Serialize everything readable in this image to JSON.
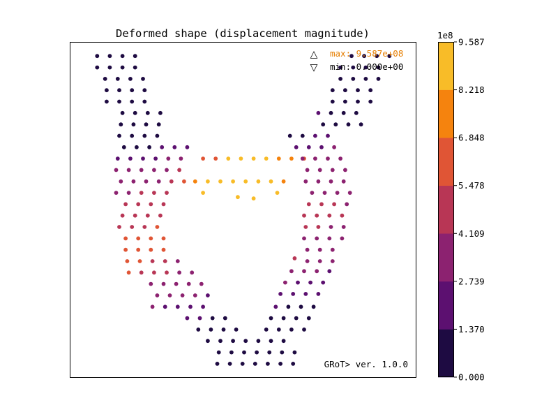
{
  "chart_data": {
    "type": "scatter",
    "title": "Deformed shape (displacement magnitude)",
    "xlabel": "",
    "ylabel": "",
    "grid": false,
    "annotations": {
      "max_marker": "△",
      "min_marker": "▽",
      "max_label": "max: 9.587e+08",
      "min_label": "min: 0.000e+00",
      "max_color": "#e67e00",
      "min_color": "#000000",
      "version": "GRoT> ver. 1.0.0"
    },
    "colorbar": {
      "multiplier": "1e8",
      "min": 0,
      "max": 9.587,
      "ticks": [
        "0.000",
        "1.370",
        "2.739",
        "4.109",
        "5.478",
        "6.848",
        "8.218",
        "9.587"
      ],
      "colors": [
        "#1e0b42",
        "#5c1070",
        "#8c2270",
        "#b83655",
        "#e05535",
        "#f5830e",
        "#f8bc28"
      ]
    },
    "points": [
      [
        0.5,
        -0.6,
        0
      ],
      [
        1.3,
        -0.6,
        0
      ],
      [
        2.1,
        -0.6,
        0
      ],
      [
        2.9,
        -0.6,
        0
      ],
      [
        0.5,
        -1.4,
        0
      ],
      [
        1.3,
        -1.4,
        0
      ],
      [
        2.1,
        -1.4,
        0
      ],
      [
        2.9,
        -1.4,
        0
      ],
      [
        1.0,
        -2.2,
        0
      ],
      [
        1.8,
        -2.2,
        0
      ],
      [
        2.6,
        -2.2,
        0
      ],
      [
        3.4,
        -2.2,
        0
      ],
      [
        1.1,
        -3.0,
        0
      ],
      [
        1.9,
        -3.0,
        0
      ],
      [
        2.7,
        -3.0,
        0
      ],
      [
        3.5,
        -3.0,
        0
      ],
      [
        1.1,
        -3.8,
        0
      ],
      [
        1.9,
        -3.8,
        0
      ],
      [
        2.7,
        -3.8,
        0
      ],
      [
        3.5,
        -3.8,
        0
      ],
      [
        2.1,
        -4.6,
        0
      ],
      [
        2.9,
        -4.6,
        0
      ],
      [
        3.7,
        -4.6,
        0
      ],
      [
        4.5,
        -4.6,
        0
      ],
      [
        2.0,
        -5.4,
        0
      ],
      [
        2.8,
        -5.4,
        0
      ],
      [
        3.6,
        -5.4,
        0
      ],
      [
        4.4,
        -5.4,
        0
      ],
      [
        1.9,
        -6.2,
        0
      ],
      [
        2.7,
        -6.2,
        0
      ],
      [
        3.5,
        -6.2,
        0
      ],
      [
        4.3,
        -6.2,
        1.0
      ],
      [
        2.2,
        -7.0,
        1.0
      ],
      [
        3.0,
        -7.0,
        1.0
      ],
      [
        3.8,
        -7.0,
        1.0
      ],
      [
        4.6,
        -7.0,
        1.8
      ],
      [
        5.4,
        -7.0,
        1.8
      ],
      [
        6.2,
        -7.0,
        2.1
      ],
      [
        1.8,
        -7.8,
        1.6
      ],
      [
        2.6,
        -7.8,
        1.8
      ],
      [
        3.4,
        -7.8,
        2.2
      ],
      [
        4.2,
        -7.8,
        2.5
      ],
      [
        5.0,
        -7.8,
        3.6
      ],
      [
        5.8,
        -7.8,
        4.0
      ],
      [
        1.7,
        -8.6,
        3.0
      ],
      [
        2.5,
        -8.6,
        3.1
      ],
      [
        3.3,
        -8.6,
        3.3
      ],
      [
        4.1,
        -8.6,
        3.4
      ],
      [
        4.9,
        -8.6,
        3.6
      ],
      [
        5.7,
        -8.6,
        4.8
      ],
      [
        2.0,
        -9.4,
        3.2
      ],
      [
        2.8,
        -9.4,
        3.4
      ],
      [
        3.6,
        -9.4,
        3.6
      ],
      [
        4.4,
        -9.4,
        4.0
      ],
      [
        5.2,
        -9.4,
        5.0
      ],
      [
        6.0,
        -9.4,
        6.5
      ],
      [
        1.7,
        -10.2,
        3.9
      ],
      [
        2.5,
        -10.2,
        4.0
      ],
      [
        3.3,
        -10.2,
        4.2
      ],
      [
        4.1,
        -10.2,
        4.3
      ],
      [
        4.9,
        -10.2,
        4.5
      ],
      [
        2.3,
        -11.0,
        4.4
      ],
      [
        3.1,
        -11.0,
        4.6
      ],
      [
        3.9,
        -11.0,
        4.7
      ],
      [
        4.7,
        -11.0,
        4.9
      ],
      [
        2.1,
        -11.8,
        4.8
      ],
      [
        2.9,
        -11.8,
        5.0
      ],
      [
        3.7,
        -11.8,
        5.2
      ],
      [
        4.5,
        -11.8,
        5.4
      ],
      [
        1.9,
        -12.6,
        5.0
      ],
      [
        2.7,
        -12.6,
        5.2
      ],
      [
        3.5,
        -12.6,
        5.4
      ],
      [
        4.3,
        -12.6,
        5.6
      ],
      [
        2.3,
        -13.4,
        5.8
      ],
      [
        3.1,
        -13.4,
        5.9
      ],
      [
        3.9,
        -13.4,
        6.0
      ],
      [
        4.7,
        -13.4,
        6.2
      ],
      [
        2.3,
        -14.2,
        6.3
      ],
      [
        3.1,
        -14.2,
        6.3
      ],
      [
        3.9,
        -14.2,
        6.3
      ],
      [
        4.7,
        -14.2,
        6.4
      ],
      [
        2.4,
        -15.0,
        6.0
      ],
      [
        3.2,
        -15.0,
        5.9
      ],
      [
        4.0,
        -15.0,
        5.4
      ],
      [
        4.8,
        -15.0,
        5.2
      ],
      [
        5.6,
        -15.0,
        4.0
      ],
      [
        2.5,
        -15.8,
        5.6
      ],
      [
        3.3,
        -15.8,
        5.1
      ],
      [
        4.1,
        -15.8,
        4.8
      ],
      [
        4.9,
        -15.8,
        4.3
      ],
      [
        5.7,
        -15.8,
        3.9
      ],
      [
        6.5,
        -15.8,
        3.6
      ],
      [
        3.9,
        -16.6,
        4.0
      ],
      [
        4.7,
        -16.6,
        3.8
      ],
      [
        5.5,
        -16.6,
        3.5
      ],
      [
        6.3,
        -16.6,
        3.3
      ],
      [
        7.1,
        -16.6,
        3.0
      ],
      [
        4.3,
        -17.4,
        3.4
      ],
      [
        5.1,
        -17.4,
        3.2
      ],
      [
        5.9,
        -17.4,
        3.0
      ],
      [
        6.7,
        -17.4,
        2.8
      ],
      [
        7.5,
        -17.4,
        2.5
      ],
      [
        4.0,
        -18.2,
        2.9
      ],
      [
        4.8,
        -18.2,
        2.7
      ],
      [
        5.6,
        -18.2,
        2.5
      ],
      [
        6.4,
        -18.2,
        2.3
      ],
      [
        7.2,
        -18.2,
        1.6
      ],
      [
        6.2,
        -19.0,
        1.6
      ],
      [
        7.0,
        -19.0,
        1.4
      ],
      [
        7.8,
        -19.0,
        1.0
      ],
      [
        8.6,
        -19.0,
        0.8
      ],
      [
        6.9,
        -19.8,
        0.9
      ],
      [
        7.7,
        -19.8,
        0.7
      ],
      [
        8.5,
        -19.8,
        0.5
      ],
      [
        9.3,
        -19.8,
        0.5
      ],
      [
        7.5,
        -20.6,
        0.3
      ],
      [
        8.3,
        -20.6,
        0.2
      ],
      [
        9.1,
        -20.6,
        0.2
      ],
      [
        9.9,
        -20.6,
        0.2
      ],
      [
        10.7,
        -20.6,
        0.2
      ],
      [
        11.5,
        -20.6,
        0.2
      ],
      [
        12.3,
        -20.6,
        0.2
      ],
      [
        8.2,
        -21.4,
        0
      ],
      [
        9.0,
        -21.4,
        0
      ],
      [
        9.8,
        -21.4,
        0
      ],
      [
        10.6,
        -21.4,
        0
      ],
      [
        11.4,
        -21.4,
        0
      ],
      [
        12.2,
        -21.4,
        0
      ],
      [
        13.0,
        -21.4,
        0
      ],
      [
        8.1,
        -22.2,
        0
      ],
      [
        8.9,
        -22.2,
        0
      ],
      [
        9.7,
        -22.2,
        0
      ],
      [
        10.5,
        -22.2,
        0
      ],
      [
        11.3,
        -22.2,
        0
      ],
      [
        12.1,
        -22.2,
        0
      ],
      [
        12.9,
        -22.2,
        0
      ],
      [
        7.2,
        -7.8,
        5.5
      ],
      [
        8.0,
        -7.8,
        6.6
      ],
      [
        8.8,
        -7.8,
        8.5
      ],
      [
        9.6,
        -7.8,
        8.8
      ],
      [
        10.4,
        -7.8,
        8.9
      ],
      [
        11.2,
        -7.8,
        8.8
      ],
      [
        12.0,
        -7.8,
        8.2
      ],
      [
        12.8,
        -7.8,
        7.0
      ],
      [
        13.6,
        -7.8,
        6.0
      ],
      [
        6.7,
        -9.4,
        6.9
      ],
      [
        7.5,
        -9.4,
        8.4
      ],
      [
        8.3,
        -9.4,
        8.6
      ],
      [
        9.1,
        -9.4,
        8.8
      ],
      [
        9.9,
        -9.4,
        8.7
      ],
      [
        10.7,
        -9.4,
        8.6
      ],
      [
        11.5,
        -9.4,
        8.5
      ],
      [
        12.3,
        -9.4,
        7.0
      ],
      [
        7.2,
        -10.2,
        8.7
      ],
      [
        9.4,
        -10.5,
        8.7
      ],
      [
        10.4,
        -10.6,
        8.6
      ],
      [
        11.9,
        -10.2,
        8.5
      ],
      [
        12.7,
        -6.2,
        1.0
      ],
      [
        13.5,
        -6.2,
        1.2
      ],
      [
        14.3,
        -6.2,
        1.5
      ],
      [
        15.1,
        -6.2,
        2.3
      ],
      [
        13.1,
        -7.0,
        2.0
      ],
      [
        13.9,
        -7.0,
        2.3
      ],
      [
        14.7,
        -7.0,
        2.5
      ],
      [
        15.5,
        -7.0,
        2.8
      ],
      [
        13.5,
        -7.8,
        4.1
      ],
      [
        14.3,
        -7.8,
        3.3
      ],
      [
        15.1,
        -7.8,
        3.1
      ],
      [
        15.9,
        -7.8,
        2.9
      ],
      [
        13.8,
        -8.6,
        3.4
      ],
      [
        14.6,
        -8.6,
        3.2
      ],
      [
        15.4,
        -8.6,
        3.0
      ],
      [
        16.2,
        -8.6,
        2.8
      ],
      [
        13.7,
        -9.4,
        3.6
      ],
      [
        14.5,
        -9.4,
        3.5
      ],
      [
        15.3,
        -9.4,
        3.3
      ],
      [
        16.1,
        -9.4,
        3.1
      ],
      [
        14.1,
        -10.2,
        4.0
      ],
      [
        14.9,
        -10.2,
        3.9
      ],
      [
        15.7,
        -10.2,
        3.7
      ],
      [
        16.5,
        -10.2,
        3.5
      ],
      [
        13.9,
        -11.0,
        4.6
      ],
      [
        14.7,
        -11.0,
        4.4
      ],
      [
        15.5,
        -11.0,
        4.2
      ],
      [
        16.3,
        -11.0,
        4.0
      ],
      [
        13.6,
        -11.8,
        4.5
      ],
      [
        14.4,
        -11.8,
        4.5
      ],
      [
        15.2,
        -11.8,
        4.4
      ],
      [
        16.0,
        -11.8,
        4.3
      ],
      [
        13.7,
        -12.6,
        4.4
      ],
      [
        14.5,
        -12.6,
        4.2
      ],
      [
        15.3,
        -12.6,
        4.0
      ],
      [
        16.1,
        -12.6,
        3.9
      ],
      [
        13.6,
        -13.4,
        3.8
      ],
      [
        14.4,
        -13.4,
        3.7
      ],
      [
        15.2,
        -13.4,
        3.4
      ],
      [
        16.0,
        -13.4,
        3.2
      ],
      [
        13.8,
        -14.2,
        4.0
      ],
      [
        14.6,
        -14.2,
        3.8
      ],
      [
        15.4,
        -14.2,
        3.5
      ],
      [
        13.0,
        -14.8,
        4.2
      ],
      [
        13.8,
        -15.0,
        3.6
      ],
      [
        14.6,
        -15.0,
        3.3
      ],
      [
        15.4,
        -15.0,
        3.0
      ],
      [
        12.8,
        -15.7,
        3.2
      ],
      [
        13.6,
        -15.7,
        3.0
      ],
      [
        14.4,
        -15.7,
        2.8
      ],
      [
        15.2,
        -15.7,
        2.6
      ],
      [
        12.4,
        -16.5,
        2.9
      ],
      [
        13.2,
        -16.5,
        2.6
      ],
      [
        14.0,
        -16.5,
        2.3
      ],
      [
        14.8,
        -16.5,
        2.1
      ],
      [
        12.1,
        -17.3,
        2.3
      ],
      [
        12.9,
        -17.3,
        2.0
      ],
      [
        13.7,
        -17.3,
        1.8
      ],
      [
        14.5,
        -17.3,
        1.5
      ],
      [
        11.8,
        -18.2,
        1.5
      ],
      [
        12.6,
        -18.2,
        1.2
      ],
      [
        13.4,
        -18.2,
        1.0
      ],
      [
        14.2,
        -18.2,
        0.8
      ],
      [
        11.5,
        -19.0,
        0.9
      ],
      [
        12.3,
        -19.0,
        0.7
      ],
      [
        13.1,
        -19.0,
        0.5
      ],
      [
        13.9,
        -19.0,
        0.4
      ],
      [
        11.2,
        -19.8,
        0.3
      ],
      [
        12.0,
        -19.8,
        0.2
      ],
      [
        12.8,
        -19.8,
        0.2
      ],
      [
        13.6,
        -19.8,
        0.2
      ],
      [
        14.5,
        -4.6,
        1.6
      ],
      [
        15.3,
        -4.6,
        1.0
      ],
      [
        16.1,
        -4.6,
        0.6
      ],
      [
        16.9,
        -4.6,
        0.3
      ],
      [
        14.8,
        -5.4,
        0.8
      ],
      [
        15.6,
        -5.4,
        0.6
      ],
      [
        16.4,
        -5.4,
        0.4
      ],
      [
        17.2,
        -5.4,
        0.2
      ],
      [
        15.4,
        -3.8,
        0
      ],
      [
        16.2,
        -3.8,
        0
      ],
      [
        17.0,
        -3.8,
        0
      ],
      [
        17.8,
        -3.8,
        0
      ],
      [
        15.4,
        -3.0,
        0
      ],
      [
        16.2,
        -3.0,
        0
      ],
      [
        17.0,
        -3.0,
        0
      ],
      [
        17.8,
        -3.0,
        0
      ],
      [
        15.9,
        -2.2,
        0
      ],
      [
        16.7,
        -2.2,
        0
      ],
      [
        17.5,
        -2.2,
        0
      ],
      [
        18.3,
        -2.2,
        0
      ],
      [
        15.9,
        -1.4,
        0
      ],
      [
        16.7,
        -1.4,
        0
      ],
      [
        17.5,
        -1.4,
        0
      ],
      [
        18.3,
        -1.4,
        0
      ],
      [
        16.6,
        -0.6,
        0
      ],
      [
        17.4,
        -0.6,
        0
      ],
      [
        18.2,
        -0.6,
        0
      ],
      [
        19.0,
        -0.6,
        0
      ]
    ]
  }
}
